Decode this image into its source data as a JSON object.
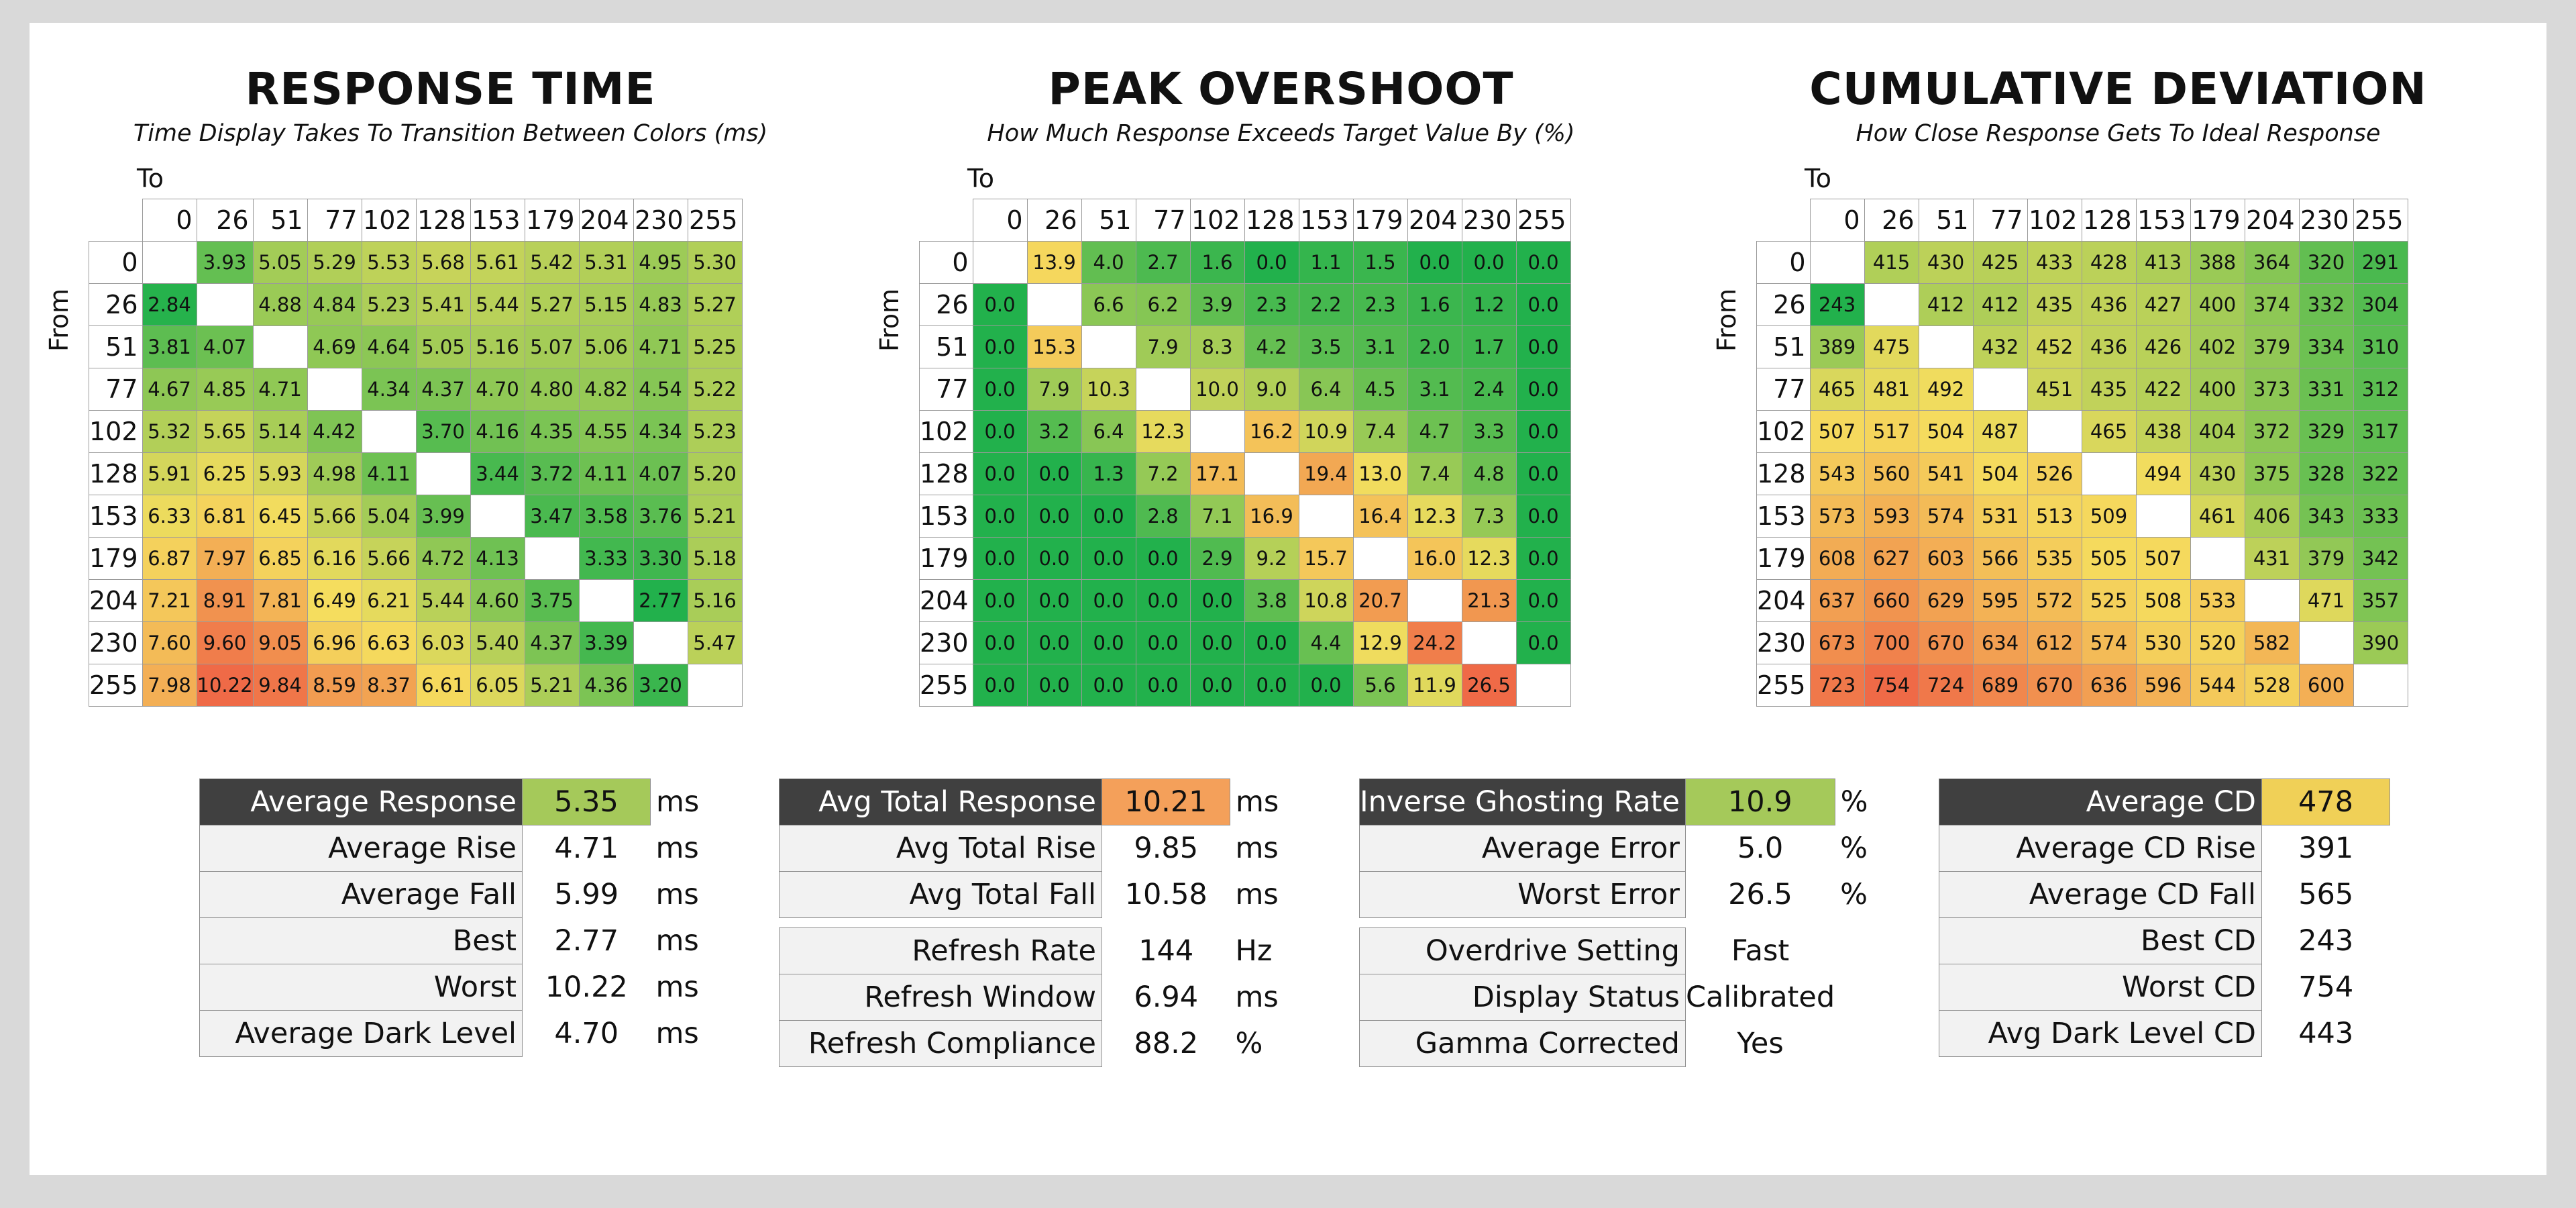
{
  "charts": [
    {
      "key": "rt",
      "title": "RESPONSE TIME",
      "subtitle": "Time Display Takes To Transition Between Colors (ms)",
      "to_label": "To",
      "from_label": "From"
    },
    {
      "key": "os",
      "title": "PEAK OVERSHOOT",
      "subtitle": "How Much Response Exceeds Target Value By (%)",
      "to_label": "To",
      "from_label": "From"
    },
    {
      "key": "cd",
      "title": "CUMULATIVE DEVIATION",
      "subtitle": "How Close Response Gets To Ideal Response",
      "to_label": "To",
      "from_label": "From"
    }
  ],
  "chart_data": [
    {
      "type": "heatmap",
      "title": "RESPONSE TIME",
      "subtitle": "Time Display Takes To Transition Between Colors (ms)",
      "xlabel": "To",
      "ylabel": "From",
      "levels": [
        "0",
        "26",
        "51",
        "77",
        "102",
        "128",
        "153",
        "179",
        "204",
        "230",
        "255"
      ],
      "decimals": 2,
      "color_scale": {
        "low": "#22b14c",
        "mid": "#f5dd5e",
        "high": "#ef6a47"
      },
      "color_range": [
        2.77,
        10.22
      ],
      "matrix": [
        [
          null,
          3.93,
          5.05,
          5.29,
          5.53,
          5.68,
          5.61,
          5.42,
          5.31,
          4.95,
          5.3
        ],
        [
          2.84,
          null,
          4.88,
          4.84,
          5.23,
          5.41,
          5.44,
          5.27,
          5.15,
          4.83,
          5.27
        ],
        [
          3.81,
          4.07,
          null,
          4.69,
          4.64,
          5.05,
          5.16,
          5.07,
          5.06,
          4.71,
          5.25
        ],
        [
          4.67,
          4.85,
          4.71,
          null,
          4.34,
          4.37,
          4.7,
          4.8,
          4.82,
          4.54,
          5.22
        ],
        [
          5.32,
          5.65,
          5.14,
          4.42,
          null,
          3.7,
          4.16,
          4.35,
          4.55,
          4.34,
          5.23
        ],
        [
          5.91,
          6.25,
          5.93,
          4.98,
          4.11,
          null,
          3.44,
          3.72,
          4.11,
          4.07,
          5.2
        ],
        [
          6.33,
          6.81,
          6.45,
          5.66,
          5.04,
          3.99,
          null,
          3.47,
          3.58,
          3.76,
          5.21
        ],
        [
          6.87,
          7.97,
          6.85,
          6.16,
          5.66,
          4.72,
          4.13,
          null,
          3.33,
          3.3,
          5.18
        ],
        [
          7.21,
          8.91,
          7.81,
          6.49,
          6.21,
          5.44,
          4.6,
          3.75,
          null,
          2.77,
          5.16
        ],
        [
          7.6,
          9.6,
          9.05,
          6.96,
          6.63,
          6.03,
          5.4,
          4.37,
          3.39,
          null,
          5.47
        ],
        [
          7.98,
          10.22,
          9.84,
          8.59,
          8.37,
          6.61,
          6.05,
          5.21,
          4.36,
          3.2,
          null
        ]
      ]
    },
    {
      "type": "heatmap",
      "title": "PEAK OVERSHOOT",
      "subtitle": "How Much Response Exceeds Target Value By (%)",
      "xlabel": "To",
      "ylabel": "From",
      "levels": [
        "0",
        "26",
        "51",
        "77",
        "102",
        "128",
        "153",
        "179",
        "204",
        "230",
        "255"
      ],
      "decimals": 1,
      "color_scale": {
        "low": "#22b14c",
        "mid": "#f5dd5e",
        "high": "#ef6a47"
      },
      "color_range": [
        0,
        26.5
      ],
      "matrix": [
        [
          null,
          13.9,
          4.0,
          2.7,
          1.6,
          0.0,
          1.1,
          1.5,
          0.0,
          0.0,
          0.0
        ],
        [
          0.0,
          null,
          6.6,
          6.2,
          3.9,
          2.3,
          2.2,
          2.3,
          1.6,
          1.2,
          0.0
        ],
        [
          0.0,
          15.3,
          null,
          7.9,
          8.3,
          4.2,
          3.5,
          3.1,
          2.0,
          1.7,
          0.0
        ],
        [
          0.0,
          7.9,
          10.3,
          null,
          10.0,
          9.0,
          6.4,
          4.5,
          3.1,
          2.4,
          0.0
        ],
        [
          0.0,
          3.2,
          6.4,
          12.3,
          null,
          16.2,
          10.9,
          7.4,
          4.7,
          3.3,
          0.0
        ],
        [
          0.0,
          0.0,
          1.3,
          7.2,
          17.1,
          null,
          19.4,
          13.0,
          7.4,
          4.8,
          0.0
        ],
        [
          0.0,
          0.0,
          0.0,
          2.8,
          7.1,
          16.9,
          null,
          16.4,
          12.3,
          7.3,
          0.0
        ],
        [
          0.0,
          0.0,
          0.0,
          0.0,
          2.9,
          9.2,
          15.7,
          null,
          16.0,
          12.3,
          0.0
        ],
        [
          0.0,
          0.0,
          0.0,
          0.0,
          0.0,
          3.8,
          10.8,
          20.7,
          null,
          21.3,
          0.0
        ],
        [
          0.0,
          0.0,
          0.0,
          0.0,
          0.0,
          0.0,
          4.4,
          12.9,
          24.2,
          null,
          0.0
        ],
        [
          0.0,
          0.0,
          0.0,
          0.0,
          0.0,
          0.0,
          0.0,
          5.6,
          11.9,
          26.5,
          null
        ]
      ]
    },
    {
      "type": "heatmap",
      "title": "CUMULATIVE DEVIATION",
      "subtitle": "How Close Response Gets To Ideal Response",
      "xlabel": "To",
      "ylabel": "From",
      "levels": [
        "0",
        "26",
        "51",
        "77",
        "102",
        "128",
        "153",
        "179",
        "204",
        "230",
        "255"
      ],
      "decimals": 0,
      "color_scale": {
        "low": "#22b14c",
        "mid": "#f5dd5e",
        "high": "#ef6a47"
      },
      "color_range": [
        243,
        754
      ],
      "matrix": [
        [
          null,
          415,
          430,
          425,
          433,
          428,
          413,
          388,
          364,
          320,
          291
        ],
        [
          243,
          null,
          412,
          412,
          435,
          436,
          427,
          400,
          374,
          332,
          304
        ],
        [
          389,
          475,
          null,
          432,
          452,
          436,
          426,
          402,
          379,
          334,
          310
        ],
        [
          465,
          481,
          492,
          null,
          451,
          435,
          422,
          400,
          373,
          331,
          312
        ],
        [
          507,
          517,
          504,
          487,
          null,
          465,
          438,
          404,
          372,
          329,
          317
        ],
        [
          543,
          560,
          541,
          504,
          526,
          null,
          494,
          430,
          375,
          328,
          322
        ],
        [
          573,
          593,
          574,
          531,
          513,
          509,
          null,
          461,
          406,
          343,
          333
        ],
        [
          608,
          627,
          603,
          566,
          535,
          505,
          507,
          null,
          431,
          379,
          342
        ],
        [
          637,
          660,
          629,
          595,
          572,
          525,
          508,
          533,
          null,
          471,
          357
        ],
        [
          673,
          700,
          670,
          634,
          612,
          574,
          530,
          520,
          582,
          null,
          390
        ],
        [
          723,
          754,
          724,
          689,
          670,
          636,
          596,
          544,
          528,
          600,
          null
        ]
      ]
    }
  ],
  "stats": [
    {
      "rows": [
        {
          "label": "Average Response",
          "value": "5.35",
          "unit": "ms",
          "highlight": "#a5c95a"
        },
        {
          "label": "Average Rise",
          "value": "4.71",
          "unit": "ms"
        },
        {
          "label": "Average Fall",
          "value": "5.99",
          "unit": "ms"
        },
        {
          "label": "Best",
          "value": "2.77",
          "unit": "ms"
        },
        {
          "label": "Worst",
          "value": "10.22",
          "unit": "ms"
        },
        {
          "label": "Average Dark Level",
          "value": "4.70",
          "unit": "ms"
        }
      ]
    },
    {
      "rows": [
        {
          "label": "Avg Total Response",
          "value": "10.21",
          "unit": "ms",
          "highlight": "#f4a05a"
        },
        {
          "label": "Avg Total Rise",
          "value": "9.85",
          "unit": "ms"
        },
        {
          "label": "Avg Total Fall",
          "value": "10.58",
          "unit": "ms"
        },
        {
          "gap": true
        },
        {
          "label": "Refresh Rate",
          "value": "144",
          "unit": "Hz"
        },
        {
          "label": "Refresh Window",
          "value": "6.94",
          "unit": "ms"
        },
        {
          "label": "Refresh Compliance",
          "value": "88.2",
          "unit": "%"
        }
      ]
    },
    {
      "rows": [
        {
          "label": "Inverse Ghosting Rate",
          "value": "10.9",
          "unit": "%",
          "highlight": "#a5c95a"
        },
        {
          "label": "Average Error",
          "value": "5.0",
          "unit": "%"
        },
        {
          "label": "Worst Error",
          "value": "26.5",
          "unit": "%"
        },
        {
          "gap": true
        },
        {
          "label": "Overdrive Setting",
          "value": "Fast",
          "unit": ""
        },
        {
          "label": "Display Status",
          "value": "Calibrated",
          "unit": ""
        },
        {
          "label": "Gamma Corrected",
          "value": "Yes",
          "unit": ""
        }
      ]
    },
    {
      "rows": [
        {
          "label": "Average CD",
          "value": "478",
          "unit": "",
          "highlight": "#f0d057"
        },
        {
          "label": "Average CD Rise",
          "value": "391",
          "unit": ""
        },
        {
          "label": "Average CD Fall",
          "value": "565",
          "unit": ""
        },
        {
          "label": "Best CD",
          "value": "243",
          "unit": ""
        },
        {
          "label": "Worst CD",
          "value": "754",
          "unit": ""
        },
        {
          "label": "Avg Dark Level CD",
          "value": "443",
          "unit": ""
        }
      ]
    }
  ]
}
